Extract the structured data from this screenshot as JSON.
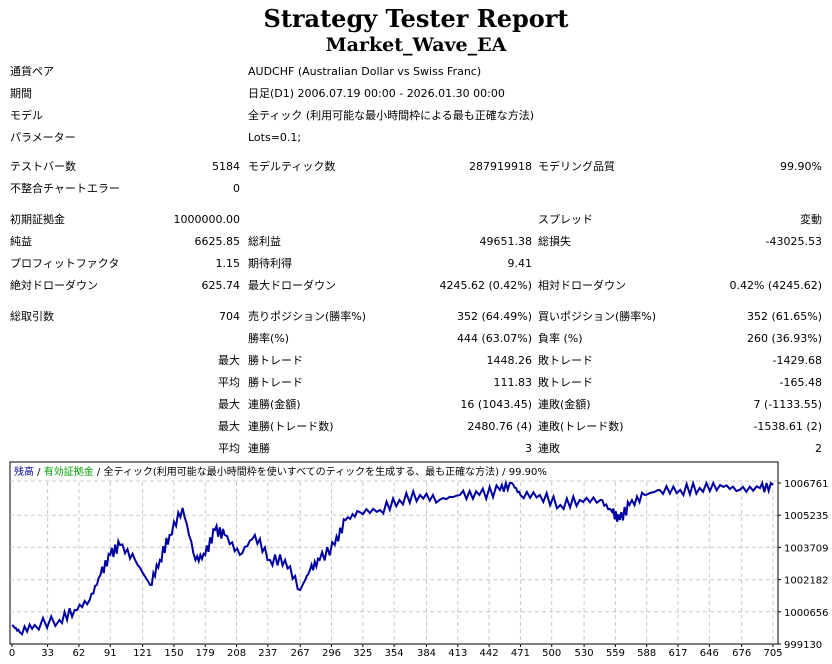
{
  "title": "Strategy Tester Report",
  "ea_name": "Market_Wave_EA",
  "info": [
    {
      "label": "通貨ペア",
      "value": "AUDCHF (Australian Dollar vs Swiss Franc)"
    },
    {
      "label": "期間",
      "value": "日足(D1) 2006.07.19 00:00 - 2026.01.30 00:00"
    },
    {
      "label": "モデル",
      "value": "全ティック (利用可能な最小時間枠による最も正確な方法)"
    },
    {
      "label": "パラメーター",
      "value": "Lots=0.1;"
    }
  ],
  "stats": {
    "bars_label": "テストバー数",
    "bars": "5184",
    "ticks_label": "モデルティック数",
    "ticks": "287919918",
    "quality_label": "モデリング品質",
    "quality": "99.90%",
    "mismatch_label": "不整合チャートエラー",
    "mismatch": "0",
    "deposit_label": "初期証拠金",
    "deposit": "1000000.00",
    "spread_label": "スプレッド",
    "spread": "変動",
    "net_label": "純益",
    "net": "6625.85",
    "gross_profit_label": "総利益",
    "gross_profit": "49651.38",
    "gross_loss_label": "総損失",
    "gross_loss": "-43025.53",
    "pf_label": "プロフィットファクタ",
    "pf": "1.15",
    "payoff_label": "期待利得",
    "payoff": "9.41",
    "abs_dd_label": "絶対ドローダウン",
    "abs_dd": "625.74",
    "max_dd_label": "最大ドローダウン",
    "max_dd": "4245.62 (0.42%)",
    "rel_dd_label": "相対ドローダウン",
    "rel_dd": "0.42% (4245.62)",
    "trades_label": "総取引数",
    "trades": "704",
    "short_label": "売りポジション(勝率%)",
    "short": "352 (64.49%)",
    "long_label": "買いポジション(勝率%)",
    "long": "352 (61.65%)",
    "win_label": "勝率(%)",
    "win": "444 (63.07%)",
    "loss_label": "負率 (%)",
    "loss": "260 (36.93%)",
    "r1_pre": "最大",
    "r1_a_label": "勝トレード",
    "r1_a": "1448.26",
    "r1_b_label": "敗トレード",
    "r1_b": "-1429.68",
    "r2_pre": "平均",
    "r2_a_label": "勝トレード",
    "r2_a": "111.83",
    "r2_b_label": "敗トレード",
    "r2_b": "-165.48",
    "r3_pre": "最大",
    "r3_a_label": "連勝(金額)",
    "r3_a": "16 (1043.45)",
    "r3_b_label": "連敗(金額)",
    "r3_b": "7 (-1133.55)",
    "r4_pre": "最大",
    "r4_a_label": "連勝(トレード数)",
    "r4_a": "2480.76 (4)",
    "r4_b_label": "連敗(トレード数)",
    "r4_b": "-1538.61 (2)",
    "r5_pre": "平均",
    "r5_a_label": "連勝",
    "r5_a": "3",
    "r5_b_label": "連敗",
    "r5_b": "2"
  },
  "chart_data": {
    "type": "line",
    "legend": {
      "balance": "残高",
      "equity": "有効証拠金",
      "sep": " / ",
      "model": "全ティック(利用可能な最小時間枠を使いすべてのティックを生成する、最も正確な方法)",
      "quality": "99.90%"
    },
    "colors": {
      "balance": "#0000a0",
      "equity": "#00a000"
    },
    "x_ticks": [
      "0",
      "33",
      "62",
      "91",
      "121",
      "150",
      "179",
      "208",
      "237",
      "267",
      "296",
      "325",
      "354",
      "384",
      "413",
      "442",
      "471",
      "500",
      "530",
      "559",
      "588",
      "617",
      "646",
      "676",
      "705"
    ],
    "y_ticks": [
      "1006761",
      "1005235",
      "1003709",
      "1002182",
      "1000656",
      "999130"
    ],
    "xlim": [
      0,
      705
    ],
    "ylim": [
      999130,
      1006761
    ],
    "series": [
      {
        "name": "残高",
        "points": [
          [
            0,
            1000030
          ],
          [
            7,
            999699
          ],
          [
            21,
            1000030
          ],
          [
            44,
            1000268
          ],
          [
            58,
            1000742
          ],
          [
            72,
            1001216
          ],
          [
            82,
            1002401
          ],
          [
            91,
            1003349
          ],
          [
            100,
            1003823
          ],
          [
            114,
            1003112
          ],
          [
            128,
            1001927
          ],
          [
            137,
            1003112
          ],
          [
            146,
            1004297
          ],
          [
            158,
            1005576
          ],
          [
            170,
            1003112
          ],
          [
            179,
            1003349
          ],
          [
            188,
            1004534
          ],
          [
            197,
            1004297
          ],
          [
            211,
            1003349
          ],
          [
            225,
            1004297
          ],
          [
            239,
            1003112
          ],
          [
            253,
            1003112
          ],
          [
            267,
            1001690
          ],
          [
            276,
            1002638
          ],
          [
            285,
            1003112
          ],
          [
            299,
            1003823
          ],
          [
            309,
            1005008
          ],
          [
            322,
            1005387
          ],
          [
            341,
            1005482
          ],
          [
            359,
            1005956
          ],
          [
            378,
            1006193
          ],
          [
            396,
            1005956
          ],
          [
            415,
            1006193
          ],
          [
            433,
            1006193
          ],
          [
            452,
            1006430
          ],
          [
            463,
            1006761
          ],
          [
            471,
            1006193
          ],
          [
            489,
            1006193
          ],
          [
            508,
            1005719
          ],
          [
            526,
            1005956
          ],
          [
            545,
            1005956
          ],
          [
            556,
            1005387
          ],
          [
            563,
            1005008
          ],
          [
            572,
            1005719
          ],
          [
            586,
            1006193
          ],
          [
            600,
            1006430
          ],
          [
            619,
            1006430
          ],
          [
            637,
            1006524
          ],
          [
            656,
            1006666
          ],
          [
            674,
            1006430
          ],
          [
            693,
            1006524
          ],
          [
            705,
            1006666
          ]
        ]
      }
    ]
  }
}
